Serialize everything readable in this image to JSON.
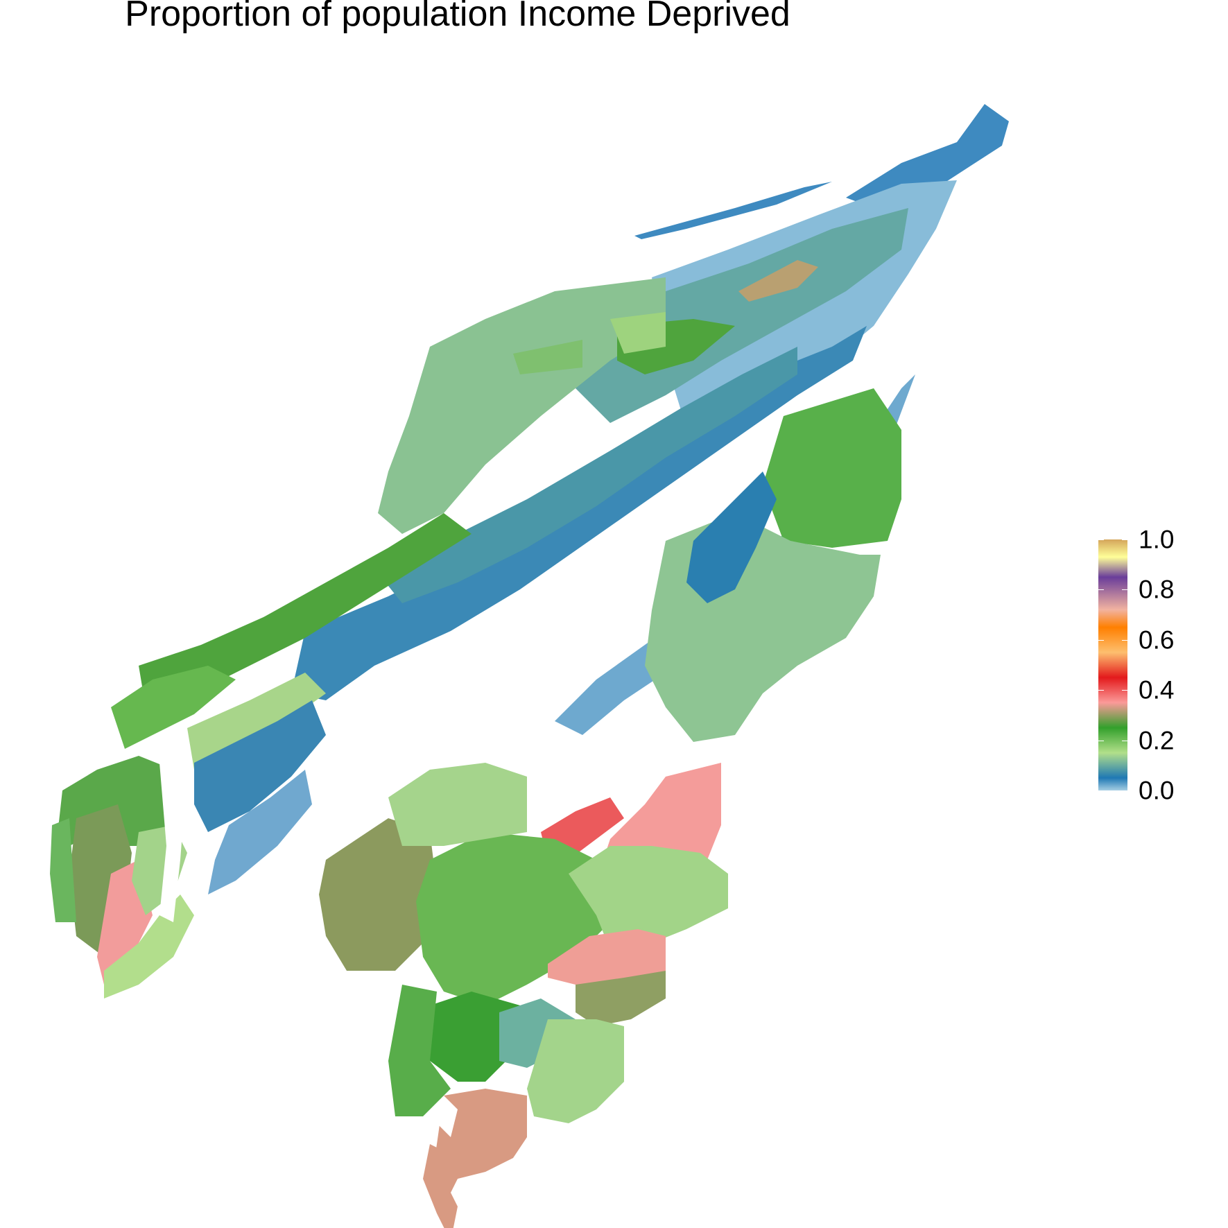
{
  "title": "Proportion of population Income Deprived",
  "legend": {
    "ticks": [
      {
        "value": 1.0,
        "label": "1.0"
      },
      {
        "value": 0.8,
        "label": "0.8"
      },
      {
        "value": 0.6,
        "label": "0.6"
      },
      {
        "value": 0.4,
        "label": "0.4"
      },
      {
        "value": 0.2,
        "label": "0.2"
      },
      {
        "value": 0.0,
        "label": "0.0"
      }
    ],
    "gradient_stops": [
      {
        "value": 0.0,
        "color": "#a6cee3"
      },
      {
        "value": 0.05,
        "color": "#1f78b4"
      },
      {
        "value": 0.15,
        "color": "#b2df8a"
      },
      {
        "value": 0.25,
        "color": "#33a02c"
      },
      {
        "value": 0.35,
        "color": "#fb9a99"
      },
      {
        "value": 0.45,
        "color": "#e31a1c"
      },
      {
        "value": 0.55,
        "color": "#fdbf6f"
      },
      {
        "value": 0.65,
        "color": "#ff7f00"
      },
      {
        "value": 0.72,
        "color": "#f2b3a0"
      },
      {
        "value": 0.85,
        "color": "#6a3d9a"
      },
      {
        "value": 0.93,
        "color": "#ffff99"
      },
      {
        "value": 1.0,
        "color": "#d4a55a"
      }
    ]
  },
  "chart_data": {
    "type": "choropleth",
    "title": "Proportion of population Income Deprived",
    "fill_variable": "Proportion of population Income Deprived",
    "scale_range": [
      0,
      1
    ]
  }
}
